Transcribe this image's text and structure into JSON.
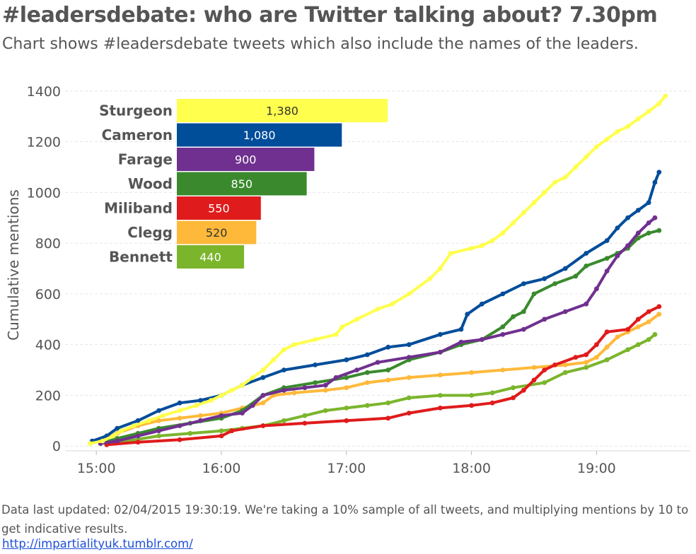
{
  "header": {
    "title": "#leadersdebate: who are Twitter talking about? 7.30pm",
    "subtitle": "Chart shows #leadersdebate tweets which also include the names of the leaders."
  },
  "footer": {
    "note": "Data last updated: 02/04/2015 19:30:19. We're taking a 10% sample of all tweets, and multiplying mentions by 10 to get indicative results.",
    "link": "http://impartialityuk.tumblr.com/"
  },
  "colors": {
    "Sturgeon": "#ffff4d",
    "Cameron": "#004d9a",
    "Farage": "#70308f",
    "Wood": "#3a8a2d",
    "Miliband": "#e01b1b",
    "Clegg": "#ffb93a",
    "Bennett": "#7bb52c",
    "grid": "#e6e6e6",
    "text": "#555555"
  },
  "chart_data": [
    {
      "type": "line",
      "ylabel": "Cumulative mentions",
      "xlabel": "",
      "xlim": [
        "14:45",
        "19:45"
      ],
      "ylim": [
        -30,
        1430
      ],
      "y_ticks": [
        0,
        200,
        400,
        600,
        800,
        1000,
        1200,
        1400
      ],
      "x_ticks": [
        "15:00",
        "16:00",
        "17:00",
        "18:00",
        "19:00"
      ],
      "series": [
        {
          "name": "Sturgeon",
          "points": [
            [
              "14:57",
              10
            ],
            [
              "15:03",
              20
            ],
            [
              "15:08",
              40
            ],
            [
              "15:12",
              60
            ],
            [
              "15:18",
              80
            ],
            [
              "15:25",
              100
            ],
            [
              "15:32",
              120
            ],
            [
              "15:40",
              140
            ],
            [
              "15:48",
              160
            ],
            [
              "15:55",
              180
            ],
            [
              "16:00",
              200
            ],
            [
              "16:05",
              220
            ],
            [
              "16:10",
              240
            ],
            [
              "16:15",
              270
            ],
            [
              "16:20",
              300
            ],
            [
              "16:25",
              340
            ],
            [
              "16:30",
              380
            ],
            [
              "16:35",
              400
            ],
            [
              "16:45",
              420
            ],
            [
              "16:55",
              440
            ],
            [
              "16:58",
              470
            ],
            [
              "17:05",
              500
            ],
            [
              "17:15",
              540
            ],
            [
              "17:22",
              560
            ],
            [
              "17:30",
              600
            ],
            [
              "17:40",
              660
            ],
            [
              "17:45",
              700
            ],
            [
              "17:50",
              760
            ],
            [
              "18:00",
              780
            ],
            [
              "18:05,",
              790
            ],
            [
              "18:10",
              810
            ],
            [
              "18:15",
              840
            ],
            [
              "18:20",
              880
            ],
            [
              "18:25",
              920
            ],
            [
              "18:30",
              960
            ],
            [
              "18:35",
              1000
            ],
            [
              "18:40",
              1040
            ],
            [
              "18:45",
              1060
            ],
            [
              "18:50",
              1100
            ],
            [
              "18:55",
              1140
            ],
            [
              "19:00",
              1180
            ],
            [
              "19:05",
              1210
            ],
            [
              "19:10",
              1240
            ],
            [
              "19:15",
              1260
            ],
            [
              "19:20",
              1290
            ],
            [
              "19:25",
              1320
            ],
            [
              "19:30",
              1350
            ],
            [
              "19:33",
              1380
            ]
          ]
        },
        {
          "name": "Cameron",
          "points": [
            [
              "14:58",
              20
            ],
            [
              "15:05",
              40
            ],
            [
              "15:10",
              70
            ],
            [
              "15:20",
              100
            ],
            [
              "15:30",
              140
            ],
            [
              "15:40",
              170
            ],
            [
              "15:50",
              180
            ],
            [
              "16:00",
              200
            ],
            [
              "16:10",
              240
            ],
            [
              "16:20",
              270
            ],
            [
              "16:30",
              300
            ],
            [
              "16:45",
              320
            ],
            [
              "17:00",
              340
            ],
            [
              "17:10",
              360
            ],
            [
              "17:20",
              390
            ],
            [
              "17:30",
              400
            ],
            [
              "17:45",
              440
            ],
            [
              "17:55",
              460
            ],
            [
              "17:58",
              520
            ],
            [
              "18:05",
              560
            ],
            [
              "18:15",
              600
            ],
            [
              "18:25",
              640
            ],
            [
              "18:35",
              660
            ],
            [
              "18:45",
              700
            ],
            [
              "18:55",
              760
            ],
            [
              "19:05",
              810
            ],
            [
              "19:10",
              860
            ],
            [
              "19:15",
              900
            ],
            [
              "19:20",
              930
            ],
            [
              "19:25",
              960
            ],
            [
              "19:28",
              1040
            ],
            [
              "19:30",
              1080
            ]
          ]
        },
        {
          "name": "Farage",
          "points": [
            [
              "15:02",
              10
            ],
            [
              "15:10",
              20
            ],
            [
              "15:20",
              40
            ],
            [
              "15:30",
              60
            ],
            [
              "15:40",
              80
            ],
            [
              "15:50",
              100
            ],
            [
              "16:00",
              120
            ],
            [
              "16:10",
              130
            ],
            [
              "16:15",
              160
            ],
            [
              "16:20",
              200
            ],
            [
              "16:30",
              220
            ],
            [
              "16:40",
              230
            ],
            [
              "16:50",
              240
            ],
            [
              "16:55",
              270
            ],
            [
              "17:05",
              300
            ],
            [
              "17:15",
              330
            ],
            [
              "17:30",
              350
            ],
            [
              "17:45",
              370
            ],
            [
              "17:55",
              410
            ],
            [
              "18:05",
              420
            ],
            [
              "18:15",
              440
            ],
            [
              "18:25",
              460
            ],
            [
              "18:35",
              500
            ],
            [
              "18:45",
              530
            ],
            [
              "18:55",
              560
            ],
            [
              "19:00",
              620
            ],
            [
              "19:05",
              690
            ],
            [
              "19:10",
              750
            ],
            [
              "19:15",
              790
            ],
            [
              "19:20",
              840
            ],
            [
              "19:25",
              880
            ],
            [
              "19:28",
              900
            ]
          ]
        },
        {
          "name": "Wood",
          "points": [
            [
              "15:02",
              10
            ],
            [
              "15:10",
              30
            ],
            [
              "15:20",
              50
            ],
            [
              "15:30",
              70
            ],
            [
              "15:45",
              90
            ],
            [
              "16:00",
              110
            ],
            [
              "16:10",
              140
            ],
            [
              "16:20",
              200
            ],
            [
              "16:30",
              230
            ],
            [
              "16:45",
              250
            ],
            [
              "17:00",
              270
            ],
            [
              "17:10",
              290
            ],
            [
              "17:20",
              300
            ],
            [
              "17:30",
              340
            ],
            [
              "17:45",
              370
            ],
            [
              "17:55",
              400
            ],
            [
              "18:05",
              420
            ],
            [
              "18:15",
              470
            ],
            [
              "18:20",
              510
            ],
            [
              "18:25",
              530
            ],
            [
              "18:30",
              600
            ],
            [
              "18:40",
              640
            ],
            [
              "18:50",
              670
            ],
            [
              "18:55",
              710
            ],
            [
              "19:05",
              740
            ],
            [
              "19:10",
              760
            ],
            [
              "19:15",
              780
            ],
            [
              "19:20",
              820
            ],
            [
              "19:25",
              840
            ],
            [
              "19:30",
              850
            ]
          ]
        },
        {
          "name": "Miliband",
          "points": [
            [
              "15:05",
              5
            ],
            [
              "15:20",
              15
            ],
            [
              "15:40",
              25
            ],
            [
              "16:00",
              40
            ],
            [
              "16:05",
              60
            ],
            [
              "16:20",
              80
            ],
            [
              "16:40",
              90
            ],
            [
              "17:00",
              100
            ],
            [
              "17:20",
              110
            ],
            [
              "17:30",
              130
            ],
            [
              "17:45",
              150
            ],
            [
              "18:00",
              160
            ],
            [
              "18:10",
              170
            ],
            [
              "18:20",
              190
            ],
            [
              "18:25",
              220
            ],
            [
              "18:30",
              260
            ],
            [
              "18:35,",
              300
            ],
            [
              "18:40",
              320
            ],
            [
              "18:50",
              350
            ],
            [
              "18:55",
              360
            ],
            [
              "19:00",
              400
            ],
            [
              "19:05",
              450
            ],
            [
              "19:15",
              460
            ],
            [
              "19:20",
              500
            ],
            [
              "19:25",
              530
            ],
            [
              "19:30",
              550
            ]
          ]
        },
        {
          "name": "Clegg",
          "points": [
            [
              "15:00",
              20
            ],
            [
              "15:10",
              50
            ],
            [
              "15:20",
              80
            ],
            [
              "15:30",
              100
            ],
            [
              "15:40",
              110
            ],
            [
              "15:50",
              120
            ],
            [
              "16:00",
              130
            ],
            [
              "16:10",
              150
            ],
            [
              "16:20",
              170
            ],
            [
              "16:25",
              200
            ],
            [
              "16:35",
              210
            ],
            [
              "16:50",
              220
            ],
            [
              "17:00",
              230
            ],
            [
              "17:10",
              250
            ],
            [
              "17:20",
              260
            ],
            [
              "17:30",
              270
            ],
            [
              "17:45",
              280
            ],
            [
              "18:00",
              290
            ],
            [
              "18:15",
              300
            ],
            [
              "18:30",
              310
            ],
            [
              "18:45",
              320
            ],
            [
              "18:55",
              330
            ],
            [
              "19:00",
              350
            ],
            [
              "19:05",
              390
            ],
            [
              "19:10",
              430
            ],
            [
              "19:15",
              450
            ],
            [
              "19:20",
              470
            ],
            [
              "19:25",
              490
            ],
            [
              "19:30",
              520
            ]
          ]
        },
        {
          "name": "Bennett",
          "points": [
            [
              "15:05",
              5
            ],
            [
              "15:15",
              20
            ],
            [
              "15:30",
              40
            ],
            [
              "15:45",
              50
            ],
            [
              "16:00",
              60
            ],
            [
              "16:10",
              70
            ],
            [
              "16:20",
              80
            ],
            [
              "16:30",
              100
            ],
            [
              "16:40",
              120
            ],
            [
              "16:50",
              140
            ],
            [
              "17:00",
              150
            ],
            [
              "17:10",
              160
            ],
            [
              "17:20",
              170
            ],
            [
              "17:30",
              190
            ],
            [
              "17:45",
              200
            ],
            [
              "18:00",
              200
            ],
            [
              "18:10",
              210
            ],
            [
              "18:20",
              230
            ],
            [
              "18:35",
              250
            ],
            [
              "18:45",
              290
            ],
            [
              "18:55",
              310
            ],
            [
              "19:05",
              340
            ],
            [
              "19:15",
              380
            ],
            [
              "19:20",
              400
            ],
            [
              "19:25",
              420
            ],
            [
              "19:28",
              440
            ]
          ]
        }
      ]
    },
    {
      "type": "bar",
      "orientation": "horizontal",
      "categories": [
        "Sturgeon",
        "Cameron",
        "Farage",
        "Wood",
        "Miliband",
        "Clegg",
        "Bennett"
      ],
      "values": [
        1380,
        1080,
        900,
        850,
        550,
        520,
        440
      ],
      "value_labels": [
        "1,380",
        "1,080",
        "900",
        "850",
        "550",
        "520",
        "440"
      ]
    }
  ]
}
